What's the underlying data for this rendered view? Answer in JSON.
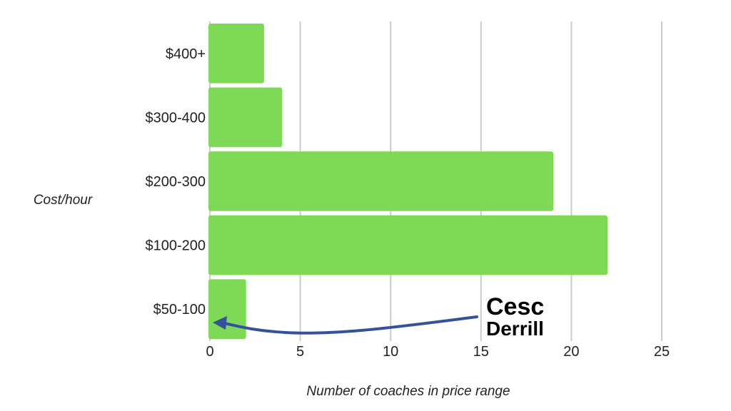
{
  "chart_data": {
    "type": "bar",
    "orientation": "horizontal",
    "categories": [
      "$400+",
      "$300-400",
      "$200-300",
      "$100-200",
      "$50-100"
    ],
    "values": [
      3,
      4,
      19,
      22,
      2
    ],
    "xlabel": "Number of coaches in price range",
    "ylabel": "Cost/hour",
    "xlim": [
      0,
      25
    ],
    "xticks": [
      0,
      5,
      10,
      15,
      20,
      25
    ],
    "grid": true,
    "bar_color": "#7ED957",
    "grid_color": "#cccccc",
    "annotation": {
      "brand_line1": "Cesc",
      "brand_line2": "Derrill",
      "arrow_color": "#34519A",
      "points_to": "$50-100"
    }
  }
}
